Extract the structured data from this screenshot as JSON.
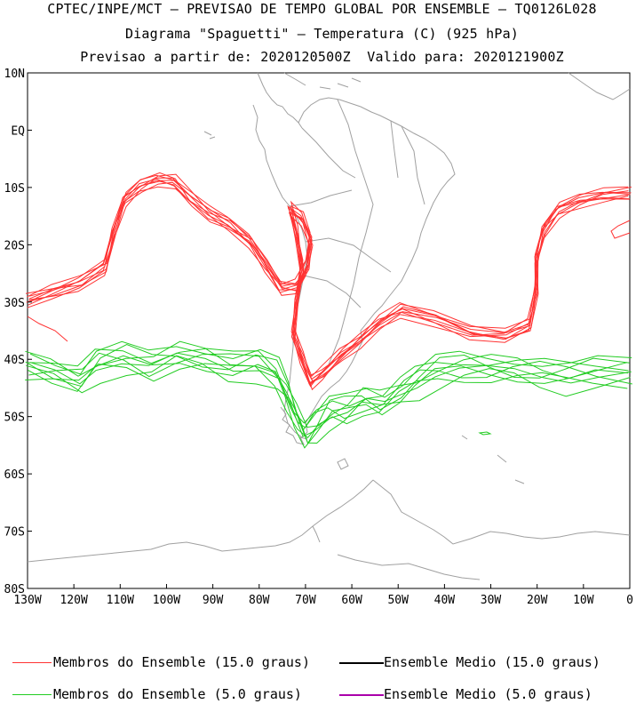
{
  "header": {
    "line1": "CPTEC/INPE/MCT – PREVISAO DE TEMPO GLOBAL POR ENSEMBLE – TQ0126L028",
    "line2": "Diagrama \"Spaguetti\" – Temperatura (C) (925 hPa)",
    "line3": "Previsao a partir de: 2020120500Z  Valido para: 2020121900Z"
  },
  "axes": {
    "lat_labels": [
      "10N",
      "EQ",
      "10S",
      "20S",
      "30S",
      "40S",
      "50S",
      "60S",
      "70S",
      "80S"
    ],
    "lon_labels": [
      "130W",
      "120W",
      "110W",
      "100W",
      "90W",
      "80W",
      "70W",
      "60W",
      "50W",
      "40W",
      "30W",
      "20W",
      "10W",
      "0"
    ]
  },
  "legend": {
    "members_15": "Membros do Ensemble (15.0 graus)",
    "mean_15": "Ensemble Medio (15.0 graus)",
    "members_5": "Membros do Ensemble (5.0 graus)",
    "mean_5": "Ensemble Medio (5.0 graus)"
  },
  "colors": {
    "members_15": "#ff3333",
    "mean_15": "#000000",
    "members_5": "#22cc22",
    "mean_5": "#aa00aa",
    "coastline": "#a0a0a0"
  }
}
